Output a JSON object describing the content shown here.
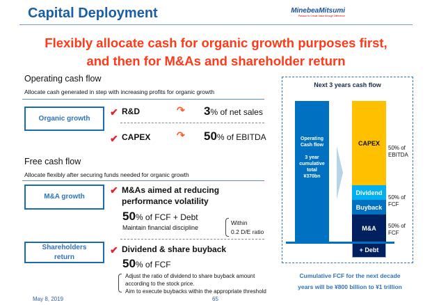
{
  "header": {
    "title": "Capital Deployment",
    "logo_name": "MinebeaMitsumi",
    "logo_tagline": "Passion to Create Value through Difference"
  },
  "headline": [
    "Flexibly allocate cash for organic growth purposes first,",
    "and then for M&As and shareholder return"
  ],
  "operating": {
    "title": "Operating cash flow",
    "subtitle": "Allocate cash generated in step with increasing profits for organic growth",
    "box": "Organic growth",
    "items": [
      {
        "label": "R&D",
        "value": "3",
        "suffix": "% of net sales"
      },
      {
        "label": "CAPEX",
        "value": "50",
        "suffix": "% of EBITDA"
      }
    ]
  },
  "free": {
    "title": "Free cash flow",
    "subtitle": "Allocate flexibly after securing funds needed for organic growth",
    "ma": {
      "box": "M&A growth",
      "line1": "M&As aimed at reducing",
      "line2": "performance volatility",
      "value": "50",
      "suffix": "% of FCF + Debt",
      "note": "Maintain financial discipline",
      "bracket1": "Within",
      "bracket2": "0.2 D/E ratio"
    },
    "sh": {
      "box1": "Shareholders",
      "box2": "return",
      "label": "Dividend & share buyback",
      "value": "50",
      "suffix": "% of FCF",
      "notes": [
        "Adjust the ratio of dividend to share buyback amount",
        "according to the stock price.",
        "Aim to execute buybacks within the appropriate threshold"
      ]
    }
  },
  "chart": {
    "title": "Next 3 years cash flow",
    "left_bar": [
      "Operating",
      "Cash flow",
      "",
      "3 year",
      "cumulative",
      "total",
      "¥370bn"
    ],
    "segments": {
      "capex": "CAPEX",
      "dividend": "Dividend",
      "buyback": "Buyback",
      "ma": "M&A",
      "debt": "+ Debt"
    },
    "labels": {
      "capex": [
        "50% of",
        "EBITDA"
      ],
      "shr": [
        "50% of",
        "FCF"
      ],
      "ma": [
        "50% of",
        "FCF"
      ]
    },
    "colors": {
      "opcf": "#0070c0",
      "capex": "#ffc000",
      "dividend": "#00b0f0",
      "buyback": "#0070c0",
      "ma": "#002060"
    },
    "footer": [
      "Cumulative FCF for the next decade",
      "years will be ¥800 billion to ¥1 trillion"
    ]
  },
  "footer": {
    "date": "May 8, 2019",
    "page": "65"
  }
}
